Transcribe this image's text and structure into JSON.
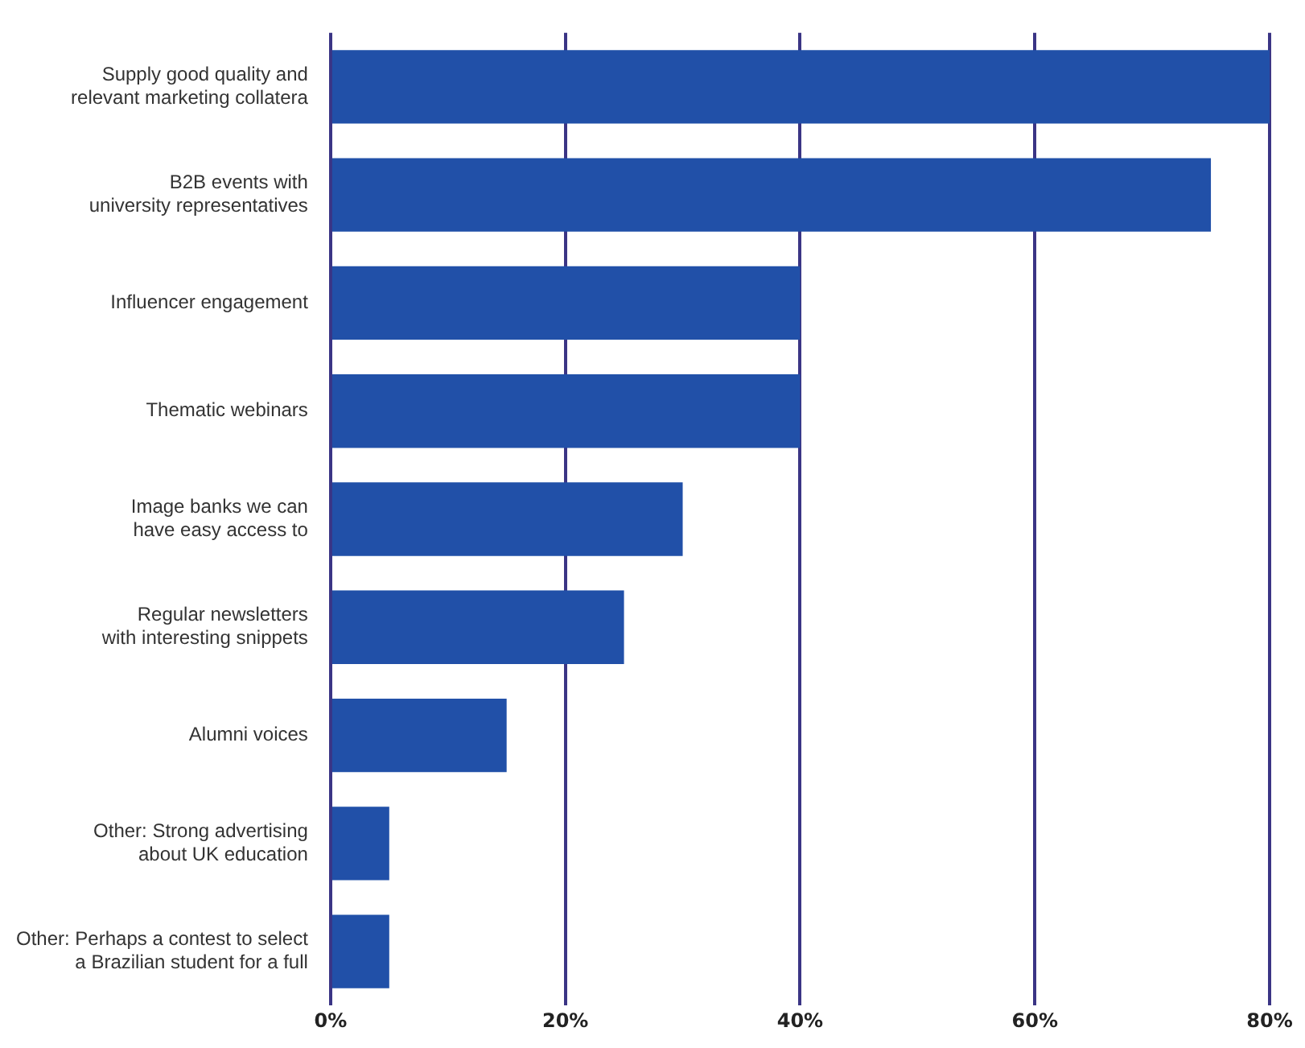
{
  "chart_data": {
    "type": "bar",
    "orientation": "horizontal",
    "categories": [
      "Supply good quality and\nrelevant marketing collatera",
      "B2B events with\nuniversity representatives",
      "Influencer engagement",
      "Thematic webinars",
      "Image banks we can\nhave easy access to",
      "Regular newsletters\nwith interesting snippets",
      "Alumni voices",
      "Other: Strong advertising\nabout UK education",
      "Other: Perhaps a contest to select\na Brazilian student for a full"
    ],
    "values": [
      80,
      75,
      40,
      40,
      30,
      25,
      15,
      5,
      5
    ],
    "color": "#2150a8",
    "xlim": [
      0,
      80
    ],
    "xticks": [
      {
        "value": 0,
        "label": "0%"
      },
      {
        "value": 20,
        "label": "20%"
      },
      {
        "value": 40,
        "label": "40%"
      },
      {
        "value": 60,
        "label": "60%"
      },
      {
        "value": 80,
        "label": "80%"
      }
    ],
    "grid": "x",
    "legend": false
  }
}
